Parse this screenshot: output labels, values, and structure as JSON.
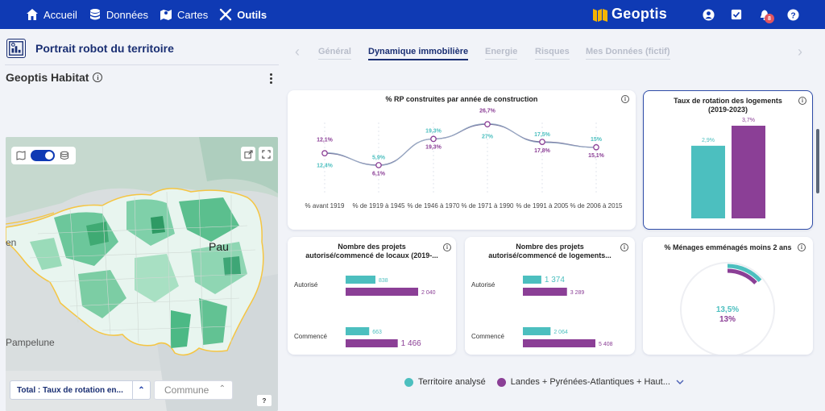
{
  "nav": {
    "items": [
      {
        "label": "Accueil",
        "icon": "home-icon"
      },
      {
        "label": "Données",
        "icon": "database-icon"
      },
      {
        "label": "Cartes",
        "icon": "map-icon"
      },
      {
        "label": "Outils",
        "icon": "tools-icon"
      }
    ],
    "brand": "Geoptis",
    "notifications": "8"
  },
  "left": {
    "portrait_title": "Portrait robot du territoire",
    "habitat_title": "Geoptis Habitat",
    "map_labels": {
      "pau": "Pau",
      "pampelune": "Pampelune",
      "en": "en"
    },
    "indicator_select": "Total : Taux de rotation en...",
    "commune_select": "Commune",
    "help": "?"
  },
  "tabs": [
    "Général",
    "Dynamique immobilière",
    "Energie",
    "Risques",
    "Mes Données (fictif)"
  ],
  "active_tab": "Dynamique immobilière",
  "colors": {
    "teal": "#4cbfbf",
    "purple": "#8b3f96",
    "navy": "#0f3ab4"
  },
  "chart_data": [
    {
      "type": "line",
      "title": "% RP construites par année de construction",
      "categories": [
        "% avant 1919",
        "% de 1919 à 1945",
        "% de 1946 à 1970",
        "% de 1971 à 1990",
        "% de 1991 à 2005",
        "% de 2006 à 2015"
      ],
      "series": [
        {
          "name": "Territoire analysé",
          "values": [
            12.4,
            5.9,
            19.3,
            27,
            17.5,
            15
          ],
          "labels": [
            "12,4%",
            "5,9%",
            "19,3%",
            "27%",
            "17,5%",
            "15%"
          ]
        },
        {
          "name": "Landes + Pyrénées-Atlantiques + Haut...",
          "values": [
            12.1,
            6.1,
            19.3,
            26.7,
            17.8,
            15.1
          ],
          "labels": [
            "12,1%",
            "6,1%",
            "19,3%",
            "26,7%",
            "17,8%",
            "15,1%"
          ]
        }
      ]
    },
    {
      "type": "bar",
      "title": "Taux de rotation des logements (2019-2023)",
      "series": [
        {
          "name": "Territoire analysé",
          "values": [
            2.9
          ],
          "labels": [
            "2,9%"
          ]
        },
        {
          "name": "Landes + Pyrénées-Atlantiques + Haut...",
          "values": [
            3.7
          ],
          "labels": [
            "3,7%"
          ]
        }
      ]
    },
    {
      "type": "bar",
      "title": "Nombre des projets autorisé/commencé de locaux (2019-...",
      "categories": [
        "Autorisé",
        "Commencé"
      ],
      "series": [
        {
          "name": "Territoire analysé",
          "values": [
            838,
            663
          ],
          "labels": [
            "838",
            "663"
          ]
        },
        {
          "name": "Landes + Pyrénées-Atlantiques + Haut...",
          "values": [
            2040,
            1466
          ],
          "labels": [
            "2 040",
            "1 466"
          ]
        }
      ]
    },
    {
      "type": "bar",
      "title": "Nombre des projets autorisé/commencé de logements...",
      "categories": [
        "Autorisé",
        "Commencé"
      ],
      "series": [
        {
          "name": "Territoire analysé",
          "values": [
            1374,
            2064
          ],
          "labels": [
            "1 374",
            "2 064"
          ]
        },
        {
          "name": "Landes + Pyrénées-Atlantiques + Haut...",
          "values": [
            3289,
            5408
          ],
          "labels": [
            "3 289",
            "5 408"
          ]
        }
      ]
    },
    {
      "type": "pie",
      "title": "% Ménages emménagés moins 2 ans",
      "series": [
        {
          "name": "Territoire analysé",
          "values": [
            13.5
          ],
          "labels": [
            "13,5%"
          ]
        },
        {
          "name": "Landes + Pyrénées-Atlantiques + Haut...",
          "values": [
            13
          ],
          "labels": [
            "13%"
          ]
        }
      ]
    }
  ],
  "legend": [
    "Territoire analysé",
    "Landes + Pyrénées-Atlantiques + Haut..."
  ]
}
